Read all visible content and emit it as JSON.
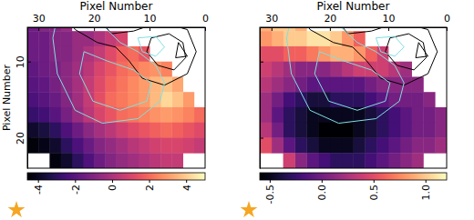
{
  "chart_data": [
    {
      "type": "heatmap",
      "xlabel": "Pixel Number",
      "ylabel": "Pixel Number",
      "xlim": [
        32,
        0
      ],
      "ylim": [
        5.5,
        24
      ],
      "xticks": [
        30,
        20,
        10,
        0
      ],
      "yticks": [
        10,
        20
      ],
      "x": [
        1,
        3,
        5,
        7,
        9,
        11,
        13,
        15,
        17,
        19,
        21,
        23,
        25,
        27,
        29,
        31
      ],
      "y": [
        5,
        7,
        9,
        11,
        13,
        15,
        17,
        19,
        21,
        23
      ],
      "z": [
        [
          null,
          null,
          null,
          null,
          null,
          null,
          null,
          null,
          null,
          null,
          null,
          null,
          -0.5,
          -1,
          -1,
          -1.5
        ],
        [
          null,
          null,
          null,
          null,
          null,
          null,
          null,
          1.0,
          0.5,
          0,
          -0.5,
          -0.5,
          -1,
          -1,
          -1.5,
          -1.5
        ],
        [
          null,
          null,
          null,
          null,
          null,
          1.5,
          2.0,
          1.8,
          1.2,
          0.5,
          0,
          -0.5,
          -1,
          -1,
          -1.5,
          -1.5
        ],
        [
          null,
          null,
          null,
          2.5,
          2.8,
          2.6,
          2.3,
          2.0,
          1.5,
          1.0,
          0.3,
          -0.3,
          -0.8,
          -1.2,
          -1.5,
          -1.8
        ],
        [
          null,
          null,
          3.2,
          3.8,
          3.5,
          3.0,
          2.6,
          2.2,
          1.8,
          1.2,
          0.5,
          -0.2,
          -0.8,
          -1.3,
          -1.8,
          -2.0
        ],
        [
          null,
          3.0,
          3.8,
          4.2,
          3.6,
          3.0,
          2.6,
          2.3,
          2.0,
          1.3,
          0.5,
          -0.3,
          -1.0,
          -1.6,
          -2.0,
          -2.3
        ],
        [
          2.0,
          2.5,
          2.8,
          3.0,
          2.8,
          2.5,
          2.2,
          2.0,
          1.5,
          1.0,
          0.3,
          -0.5,
          -1.3,
          -2.0,
          -2.5,
          -2.8
        ],
        [
          1.2,
          1.5,
          1.8,
          2.0,
          1.8,
          1.5,
          1.2,
          0.8,
          0.3,
          -0.2,
          -0.8,
          -1.5,
          -2.2,
          -3.0,
          -3.5,
          -3.8
        ],
        [
          0.5,
          0.8,
          1.0,
          1.0,
          0.8,
          0.5,
          0.2,
          -0.2,
          -0.6,
          -1.0,
          -1.6,
          -2.3,
          -3.0,
          -3.8,
          -4.2,
          -4.4
        ],
        [
          null,
          null,
          0.5,
          0.5,
          0.3,
          0.0,
          -0.3,
          -0.6,
          -1.0,
          -1.5,
          -2.2,
          -3.0,
          -3.8,
          -4.3,
          null,
          null
        ]
      ],
      "colorbar": {
        "range": [
          -4.6,
          5
        ],
        "ticks": [
          -4,
          -2,
          0,
          2,
          4
        ]
      },
      "contours": [
        {
          "color": "#000000",
          "x": [
            19.4,
            16.9,
            12.9,
            8.1,
            3.2,
            1.6,
            3.2,
            7.3,
            11.3,
            13.7,
            16.1,
            19.4,
            23.4,
            25.0
          ],
          "y": [
            4.0,
            6.35,
            6.0,
            4.8,
            5.8,
            8.7,
            11.6,
            13.1,
            12.2,
            9.9,
            8.1,
            7.5,
            5.8,
            4.0
          ]
        },
        {
          "color": "#000000",
          "x": [
            9.7,
            6.5,
            4.0,
            3.5,
            5.6,
            8.5,
            10.5,
            9.7
          ],
          "y": [
            6.9,
            6.35,
            7.5,
            9.5,
            11.1,
            10.5,
            8.7,
            6.9
          ]
        },
        {
          "color": "#000000",
          "x": [
            4.8,
            3.2,
            5.3,
            4.8
          ],
          "y": [
            7.5,
            9.3,
            9.5,
            7.5
          ]
        },
        {
          "color": "#80e0e0",
          "x": [
            26.6,
            27.4,
            26.6,
            23.4,
            18.5,
            12.1,
            8.1,
            7.3,
            8.9,
            12.1,
            15.3,
            18.5,
            20.2
          ],
          "y": [
            4.0,
            6.9,
            11.6,
            16.4,
            18.1,
            17.5,
            15.2,
            12.8,
            10.5,
            8.7,
            7.5,
            5.2,
            4.0
          ]
        },
        {
          "color": "#80e0e0",
          "x": [
            21.8,
            22.6,
            20.2,
            15.3,
            10.5,
            9.7,
            12.9,
            17.7,
            21.8
          ],
          "y": [
            8.7,
            11.6,
            15.2,
            16.4,
            15.2,
            12.8,
            11.1,
            9.9,
            8.7
          ]
        },
        {
          "color": "#80e0e0",
          "x": [
            12.1,
            8.9,
            7.3,
            8.9,
            11.3,
            12.1
          ],
          "y": [
            6.9,
            6.7,
            8.1,
            9.3,
            8.7,
            6.9
          ]
        }
      ]
    },
    {
      "type": "heatmap",
      "xlabel": "Pixel Number",
      "tick_labels": "x",
      "xlim": [
        32,
        0
      ],
      "ylim": [
        5.5,
        24
      ],
      "xticks": [
        30,
        20,
        10,
        0
      ],
      "yticks": [
        10,
        20
      ],
      "x": [
        1,
        3,
        5,
        7,
        9,
        11,
        13,
        15,
        17,
        19,
        21,
        23,
        25,
        27,
        29,
        31
      ],
      "y": [
        5,
        7,
        9,
        11,
        13,
        15,
        17,
        19,
        21,
        23
      ],
      "z": [
        [
          null,
          null,
          null,
          null,
          null,
          null,
          null,
          null,
          null,
          null,
          null,
          null,
          0.9,
          1.0,
          1.0,
          0.9
        ],
        [
          null,
          null,
          null,
          null,
          null,
          null,
          null,
          0.6,
          0.8,
          1.0,
          1.1,
          1.1,
          1.0,
          1.0,
          0.9,
          0.8
        ],
        [
          null,
          null,
          null,
          null,
          null,
          0.4,
          0.6,
          0.8,
          0.9,
          0.9,
          0.8,
          0.7,
          0.6,
          0.6,
          0.5,
          0.5
        ],
        [
          null,
          null,
          null,
          0.2,
          0.3,
          0.4,
          0.4,
          0.4,
          0.3,
          0.2,
          0.1,
          0.1,
          0.1,
          0.2,
          0.3,
          0.4
        ],
        [
          null,
          null,
          0.1,
          0.1,
          0.1,
          0.1,
          0.0,
          -0.1,
          -0.1,
          -0.1,
          -0.1,
          -0.1,
          0.0,
          0.1,
          0.2,
          0.3
        ],
        [
          null,
          0.1,
          0.0,
          0.0,
          0.0,
          -0.1,
          -0.2,
          -0.3,
          -0.3,
          -0.3,
          -0.4,
          -0.4,
          -0.3,
          -0.2,
          0.0,
          0.2
        ],
        [
          0.1,
          0.0,
          0.0,
          -0.1,
          -0.2,
          -0.3,
          -0.4,
          -0.5,
          -0.5,
          -0.5,
          -0.5,
          -0.5,
          -0.4,
          -0.3,
          -0.1,
          0.2
        ],
        [
          0.1,
          0.0,
          0.0,
          -0.1,
          -0.2,
          -0.3,
          -0.4,
          -0.5,
          -0.6,
          -0.6,
          -0.6,
          -0.5,
          -0.4,
          -0.3,
          0.0,
          0.3
        ],
        [
          0.2,
          0.1,
          0.1,
          0.0,
          -0.1,
          -0.2,
          -0.3,
          -0.4,
          -0.5,
          -0.5,
          -0.5,
          -0.4,
          -0.3,
          -0.1,
          0.2,
          0.5
        ],
        [
          null,
          null,
          0.2,
          0.1,
          0.0,
          -0.1,
          -0.2,
          -0.3,
          -0.3,
          -0.3,
          -0.2,
          -0.1,
          0.1,
          0.4,
          null,
          null
        ]
      ],
      "colorbar": {
        "range": [
          -0.6,
          1.2
        ],
        "ticks": [
          -0.5,
          {
            "value": 0,
            "label": "0.0"
          },
          0.5,
          {
            "value": 1,
            "label": "1.0"
          }
        ]
      },
      "contours": [
        {
          "color": "#000000",
          "x": [
            19.4,
            16.9,
            12.9,
            8.1,
            3.2,
            1.6,
            3.2,
            7.3,
            11.3,
            13.7,
            16.1,
            19.4,
            23.4,
            25.0
          ],
          "y": [
            4.0,
            6.35,
            6.0,
            4.8,
            5.8,
            8.7,
            11.6,
            13.1,
            12.2,
            9.9,
            8.1,
            7.5,
            5.8,
            4.0
          ]
        },
        {
          "color": "#000000",
          "x": [
            9.7,
            6.5,
            4.0,
            3.5,
            5.6,
            8.5,
            10.5,
            9.7
          ],
          "y": [
            6.9,
            6.35,
            7.5,
            9.5,
            11.1,
            10.5,
            8.7,
            6.9
          ]
        },
        {
          "color": "#000000",
          "x": [
            4.8,
            3.2,
            5.3,
            4.8
          ],
          "y": [
            7.5,
            9.3,
            9.5,
            7.5
          ]
        },
        {
          "color": "#80e0e0",
          "x": [
            26.6,
            27.4,
            26.6,
            23.4,
            18.5,
            12.1,
            8.1,
            7.3,
            8.9,
            12.1,
            15.3,
            18.5,
            20.2
          ],
          "y": [
            4.0,
            6.9,
            11.6,
            16.4,
            18.1,
            17.5,
            15.2,
            12.8,
            10.5,
            8.7,
            7.5,
            5.2,
            4.0
          ]
        },
        {
          "color": "#80e0e0",
          "x": [
            21.8,
            22.6,
            20.2,
            15.3,
            10.5,
            9.7,
            12.9,
            17.7,
            21.8
          ],
          "y": [
            8.7,
            11.6,
            15.2,
            16.4,
            15.2,
            12.8,
            11.1,
            9.9,
            8.7
          ]
        },
        {
          "color": "#80e0e0",
          "x": [
            12.1,
            8.9,
            7.3,
            8.9,
            11.3,
            12.1
          ],
          "y": [
            6.9,
            6.7,
            8.1,
            9.3,
            8.7,
            6.9
          ]
        }
      ]
    }
  ]
}
